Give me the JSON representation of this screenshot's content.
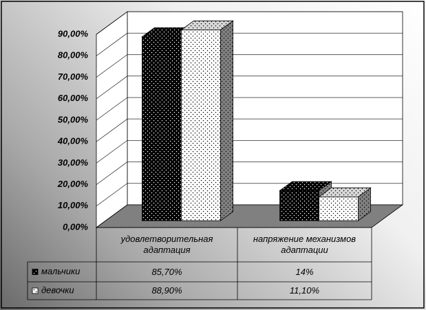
{
  "chart_data": {
    "type": "bar",
    "categories": [
      "удовлетворительная адаптация",
      "напряжение механизмов адаптации"
    ],
    "series": [
      {
        "name": "мальчики",
        "color": "#000000",
        "values": [
          85.7,
          14
        ],
        "value_labels": [
          "85,70%",
          "14%"
        ]
      },
      {
        "name": "девочки",
        "color": "#ffffff",
        "values": [
          88.9,
          11.1
        ],
        "value_labels": [
          "88,90%",
          "11,10%"
        ]
      }
    ],
    "ylim": [
      0,
      90
    ],
    "yticks": [
      {
        "value": 0,
        "label": "0,00%"
      },
      {
        "value": 10,
        "label": "10,00%"
      },
      {
        "value": 20,
        "label": "20,00%"
      },
      {
        "value": 30,
        "label": "30,00%"
      },
      {
        "value": 40,
        "label": "40,00%"
      },
      {
        "value": 50,
        "label": "50,00%"
      },
      {
        "value": 60,
        "label": "60,00%"
      },
      {
        "value": 70,
        "label": "70,00%"
      },
      {
        "value": 80,
        "label": "80,00%"
      },
      {
        "value": 90,
        "label": "90,00%"
      }
    ],
    "grid": true
  }
}
